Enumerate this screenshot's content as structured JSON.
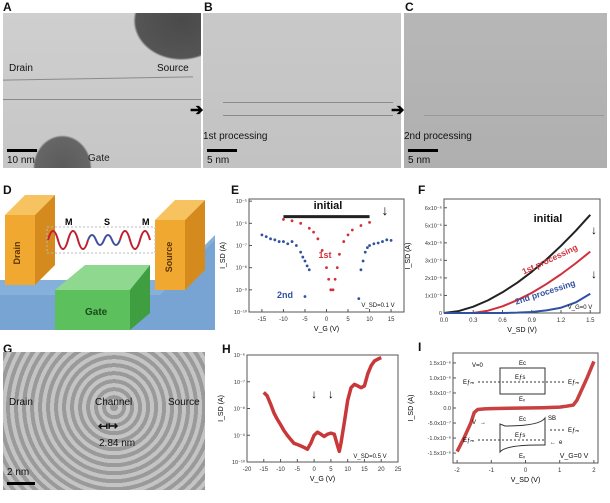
{
  "panels": {
    "A": {
      "label": "A",
      "drain": "Drain",
      "source": "Source",
      "gate": "Gate",
      "scale": "10 nm"
    },
    "B": {
      "label": "B",
      "arrow_text": "1st processing",
      "scale": "5 nm"
    },
    "C": {
      "label": "C",
      "arrow_text": "2nd processing",
      "scale": "5 nm"
    },
    "D": {
      "label": "D",
      "drain": "Drain",
      "source": "Source",
      "gate": "Gate",
      "m_left": "M",
      "s": "S",
      "m_right": "M"
    },
    "E": {
      "label": "E"
    },
    "F": {
      "label": "F"
    },
    "G": {
      "label": "G",
      "drain": "Drain",
      "channel": "Channel",
      "source": "Source",
      "width": "2.84 nm",
      "scale": "2 nm"
    },
    "H": {
      "label": "H"
    },
    "I": {
      "label": "I",
      "inset": {
        "v0": "V=0",
        "v": "V",
        "ec": "Eᴄ",
        "efs": "Eƒs",
        "efm": "Eƒₘ",
        "ev": "Eᵥ",
        "sb": "SB",
        "e": "e"
      }
    }
  },
  "colors": {
    "initial": "#222222",
    "first": "#d0303a",
    "second": "#3050a0",
    "H": "#c8383a",
    "I": "#c84040",
    "gate": "#5cc05c",
    "electrode": "#f0a830",
    "substrate": "#7ea8d8"
  },
  "chart_data": [
    {
      "type": "scatter",
      "panel": "E",
      "title": "",
      "xlabel": "V_G (V)",
      "ylabel": "I_SD (A)",
      "yscale": "log",
      "xlim": [
        -18,
        18
      ],
      "ylim": [
        1e-10,
        1.25e-05
      ],
      "xticks": [
        -15,
        -10,
        -5,
        0,
        5,
        10,
        15
      ],
      "xticklabels": [
        "-15",
        "-10",
        "-5",
        "0",
        "5",
        "10",
        "15"
      ],
      "yticks": [
        1e-05,
        1e-06,
        1e-07,
        1e-08,
        1e-09,
        1e-10
      ],
      "yticklabels": [
        "10⁻⁵",
        "10⁻⁶",
        "10⁻⁷",
        "10⁻⁸",
        "10⁻⁹",
        "10⁻¹⁰"
      ],
      "annotations": [
        "initial",
        "1st",
        "2nd",
        "V_SD=0.1 V"
      ],
      "series": [
        {
          "name": "initial",
          "style": "line",
          "x": [
            -10,
            10
          ],
          "y": [
            2e-06,
            2e-06
          ]
        },
        {
          "name": "1st",
          "style": "points",
          "x": [
            -10,
            -8,
            -6,
            -4,
            -3,
            -2,
            -1,
            0,
            0.5,
            1,
            1.5,
            2,
            2.5,
            3,
            4,
            5,
            6,
            8,
            10
          ],
          "y": [
            1.5e-06,
            1.3e-06,
            1e-06,
            6e-07,
            4e-07,
            2e-07,
            6e-08,
            1e-08,
            3e-09,
            1e-09,
            1e-09,
            3e-09,
            1e-08,
            4e-08,
            1.5e-07,
            3e-07,
            5e-07,
            8e-07,
            1.1e-06
          ]
        },
        {
          "name": "2nd",
          "style": "points",
          "x": [
            -15,
            -14,
            -13,
            -12,
            -11,
            -10,
            -9,
            -8,
            -7,
            -6,
            -5.5,
            -5,
            -4.5,
            -4,
            -5,
            7.5,
            8,
            8.5,
            9,
            9.5,
            10,
            11,
            12,
            13,
            14,
            15
          ],
          "y": [
            3e-07,
            2.5e-07,
            2e-07,
            1.8e-07,
            1.5e-07,
            1.5e-07,
            1.2e-07,
            1.5e-07,
            1e-07,
            5e-08,
            3e-08,
            2e-08,
            1.2e-08,
            8e-09,
            5e-10,
            4e-10,
            8e-09,
            2e-08,
            5e-08,
            8e-08,
            1e-07,
            1.2e-07,
            1.3e-07,
            1.5e-07,
            1.8e-07,
            1.7e-07
          ]
        }
      ]
    },
    {
      "type": "line",
      "panel": "F",
      "title": "",
      "xlabel": "V_SD (V)",
      "ylabel": "I_SD (A)",
      "yscale": "linear",
      "xlim": [
        0,
        1.6
      ],
      "ylim": [
        0,
        6.5e-06
      ],
      "xticks": [
        0,
        0.3,
        0.6,
        0.9,
        1.2,
        1.5
      ],
      "xticklabels": [
        "0.0",
        "0.3",
        "0.6",
        "0.9",
        "1.2",
        "1.5"
      ],
      "yticks": [
        0,
        1e-06,
        2e-06,
        3e-06,
        4e-06,
        5e-06,
        6e-06
      ],
      "yticklabels": [
        "0",
        "1x10⁻⁶",
        "2x10⁻⁶",
        "3x10⁻⁶",
        "4x10⁻⁶",
        "5x10⁻⁶",
        "6x10⁻⁶"
      ],
      "annotations": [
        "initial",
        "1st processing",
        "2nd processing",
        "V_G=0 V"
      ],
      "series": [
        {
          "name": "initial",
          "style": "line",
          "x": [
            0,
            0.15,
            0.3,
            0.45,
            0.6,
            0.75,
            0.9,
            1.05,
            1.2,
            1.35,
            1.5
          ],
          "y": [
            0,
            1.1e-07,
            3.6e-07,
            7.2e-07,
            1.18e-06,
            1.72e-06,
            2.35e-06,
            3.05e-06,
            3.83e-06,
            4.68e-06,
            5.6e-06
          ]
        },
        {
          "name": "1st processing",
          "style": "line",
          "x": [
            0.3,
            0.45,
            0.6,
            0.75,
            0.9,
            1.05,
            1.2,
            1.35,
            1.5
          ],
          "y": [
            0,
            1.3e-07,
            3.8e-07,
            7.3e-07,
            1.15e-06,
            1.65e-06,
            2.21e-06,
            2.83e-06,
            3.5e-06
          ]
        },
        {
          "name": "2nd processing",
          "style": "line",
          "x": [
            0,
            0.6,
            0.75,
            0.9,
            1.05,
            1.2,
            1.35,
            1.5
          ],
          "y": [
            0,
            0,
            2e-08,
            6e-08,
            1.5e-07,
            3e-07,
            6e-07,
            1.1e-06
          ]
        }
      ]
    },
    {
      "type": "line",
      "panel": "H",
      "title": "",
      "xlabel": "V_G (V)",
      "ylabel": "I_SD (A)",
      "yscale": "log",
      "xlim": [
        -20,
        25
      ],
      "ylim": [
        1e-10,
        1e-06
      ],
      "xticks": [
        -20,
        -15,
        -10,
        -5,
        0,
        5,
        10,
        15,
        20,
        25
      ],
      "xticklabels": [
        "-20",
        "-15",
        "-10",
        "-5",
        "0",
        "5",
        "10",
        "15",
        "20",
        "25"
      ],
      "yticks": [
        1e-06,
        1e-07,
        1e-08,
        1e-09,
        1e-10
      ],
      "yticklabels": [
        "10⁻⁶",
        "10⁻⁷",
        "10⁻⁸",
        "10⁻⁹",
        "10⁻¹⁰"
      ],
      "annotations": [
        "V_SD=0.5 V"
      ],
      "arrows_at_x": [
        0,
        5
      ],
      "series": [
        {
          "name": "I_SD",
          "style": "thick",
          "x": [
            -15,
            -14,
            -13,
            -12,
            -11,
            -10,
            -9,
            -8,
            -7,
            -6,
            -5,
            -4,
            -3,
            -2,
            -1,
            0,
            1,
            2,
            3,
            4,
            5,
            6,
            7,
            7.5,
            8,
            9,
            10,
            11,
            12,
            13,
            14,
            15,
            16,
            17,
            18,
            19,
            20
          ],
          "y": [
            4e-08,
            3e-08,
            1.5e-08,
            7e-09,
            4e-09,
            2.5e-09,
            1.5e-09,
            1e-09,
            7e-10,
            5e-10,
            4.5e-10,
            4e-10,
            3.5e-10,
            3e-10,
            5e-10,
            1e-09,
            1.3e-09,
            1.1e-09,
            9e-10,
            1.1e-09,
            1.2e-09,
            1.1e-09,
            4e-10,
            2.5e-10,
            5e-10,
            3e-09,
            2e-08,
            6e-08,
            8e-08,
            7e-08,
            6e-08,
            7e-08,
            2e-07,
            4e-07,
            6e-07,
            7e-07,
            8e-07
          ]
        }
      ]
    },
    {
      "type": "line",
      "panel": "I",
      "title": "",
      "xlabel": "V_SD (V)",
      "ylabel": "I_SD (A)",
      "yscale": "linear",
      "xlim": [
        -2.12,
        2.12
      ],
      "ylim": [
        -1.83e-06,
        1.83e-06
      ],
      "xticks": [
        -2,
        -1,
        0,
        1,
        2
      ],
      "xticklabels": [
        "-2",
        "-1",
        "0",
        "1",
        "2"
      ],
      "yticks": [
        1.5e-06,
        1e-06,
        5e-07,
        0,
        -5e-07,
        -1e-06,
        -1.5e-06
      ],
      "yticklabels": [
        "1.5x10⁻⁶",
        "1.0x10⁻⁶",
        "5.0x10⁻⁷",
        "0.0",
        "-5.0x10⁻⁷",
        "-1.0x10⁻⁶",
        "-1.5x10⁻⁶"
      ],
      "annotations": [
        "V_G=0 V"
      ],
      "series": [
        {
          "name": "I_SD",
          "style": "thick",
          "x": [
            -2,
            -1.8,
            -1.6,
            -1.5,
            -1.4,
            -1.2,
            -1,
            -0.5,
            0,
            0.5,
            1,
            1.2,
            1.4,
            1.5,
            1.6,
            1.8,
            2
          ],
          "y": [
            -1.45e-06,
            -1e-06,
            -5e-07,
            -1.5e-07,
            -5e-08,
            -3e-08,
            -2e-08,
            -1e-08,
            0,
            1e-08,
            3e-08,
            6e-08,
            1e-07,
            2.5e-07,
            5e-07,
            1e-06,
            1.55e-06
          ]
        }
      ]
    }
  ]
}
